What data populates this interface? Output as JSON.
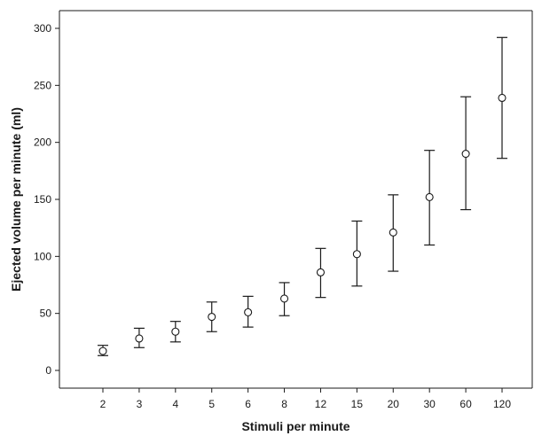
{
  "chart_data": {
    "type": "scatter",
    "title": "",
    "xlabel": "Stimuli per minute",
    "ylabel": "Ejected volume per minute (ml)",
    "categories": [
      "2",
      "3",
      "4",
      "5",
      "6",
      "8",
      "12",
      "15",
      "20",
      "30",
      "60",
      "120"
    ],
    "ylim": [
      -15,
      315
    ],
    "yticks": [
      0,
      50,
      100,
      150,
      200,
      250,
      300
    ],
    "ytick_labels": [
      "0",
      "50",
      "100",
      "150",
      "200",
      "250",
      "300"
    ],
    "grid": false,
    "marker": "open-circle",
    "series": [
      {
        "values": [
          17,
          28,
          34,
          47,
          51,
          63,
          86,
          102,
          121,
          152,
          190,
          239
        ],
        "error_low": [
          13,
          20,
          25,
          34,
          38,
          48,
          64,
          74,
          87,
          110,
          141,
          186
        ],
        "error_high": [
          22,
          37,
          43,
          60,
          65,
          77,
          107,
          131,
          154,
          193,
          240,
          292
        ]
      }
    ]
  }
}
